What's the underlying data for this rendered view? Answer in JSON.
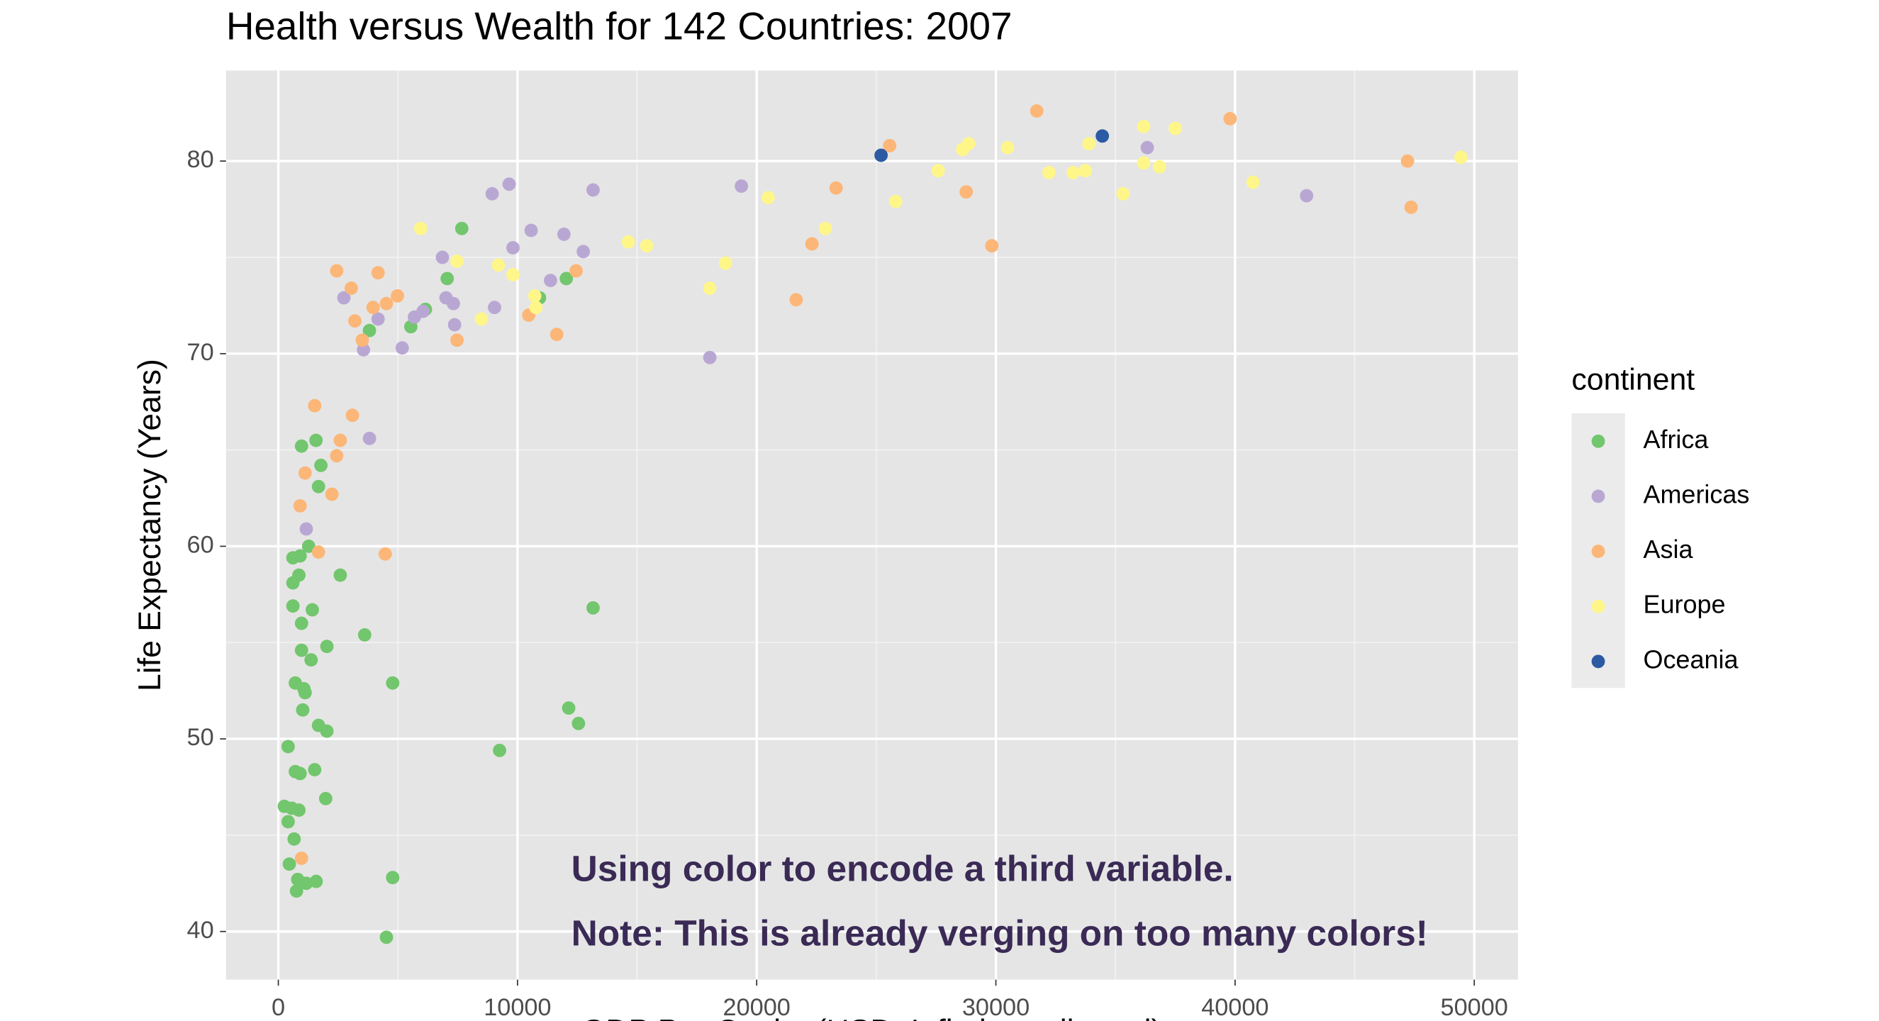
{
  "chart_data": {
    "type": "scatter",
    "title": "Health versus Wealth for 142 Countries: 2007",
    "x_label": "GDP Per Capita (USD, Inflation-adjusted)",
    "y_label": "Life Expectancy (Years)",
    "legend_title": "continent",
    "annotations": [
      "Using color to encode a third variable.",
      "Note: This is already verging on too many colors!"
    ],
    "xlim": [
      -2185,
      51830
    ],
    "ylim": [
      37.5,
      84.7
    ],
    "xticks": [
      0,
      10000,
      20000,
      30000,
      40000,
      50000
    ],
    "yticks": [
      40,
      50,
      60,
      70,
      80
    ],
    "grid": true,
    "series": [
      {
        "name": "Africa",
        "color": "#72c66d",
        "x": [
          970,
          1575,
          1780,
          1680,
          3810,
          5540,
          6150,
          7060,
          7670,
          10920,
          12040,
          13160,
          12140,
          12550,
          9250,
          4780,
          4780,
          4520,
          3610,
          2590,
          2030,
          1680,
          2030,
          1980,
          1520,
          1420,
          1370,
          970,
          1070,
          1270,
          860,
          610,
          910,
          610,
          610,
          970,
          710,
          1120,
          1020,
          410,
          710,
          910,
          250,
          560,
          860,
          410,
          660,
          460,
          810,
          760,
          1170,
          1580
        ],
        "values": [
          65.2,
          65.5,
          64.2,
          63.1,
          71.2,
          71.4,
          72.3,
          73.9,
          76.5,
          72.9,
          73.9,
          56.8,
          51.6,
          50.8,
          49.4,
          52.9,
          42.8,
          39.7,
          55.4,
          58.5,
          54.8,
          50.7,
          50.4,
          46.9,
          48.4,
          56.7,
          54.1,
          54.6,
          52.6,
          60.0,
          58.5,
          59.4,
          59.5,
          58.1,
          56.9,
          56.0,
          52.9,
          52.4,
          51.5,
          49.6,
          48.3,
          48.2,
          46.5,
          46.4,
          46.3,
          45.7,
          44.8,
          43.5,
          42.7,
          42.1,
          42.5,
          42.6
        ]
      },
      {
        "name": "Americas",
        "color": "#b9a7d3",
        "x": [
          2740,
          3560,
          3810,
          1170,
          4170,
          5180,
          5690,
          6050,
          6860,
          7010,
          7320,
          7370,
          8940,
          9650,
          9040,
          9810,
          10570,
          11380,
          11940,
          12750,
          13160,
          18040,
          19360,
          36330,
          42990
        ],
        "values": [
          72.9,
          70.2,
          65.6,
          60.9,
          71.8,
          70.3,
          71.9,
          72.2,
          75.0,
          72.9,
          72.6,
          71.5,
          78.3,
          78.8,
          72.4,
          75.5,
          76.4,
          73.8,
          76.2,
          75.3,
          78.5,
          69.8,
          78.7,
          80.7,
          78.2
        ]
      },
      {
        "name": "Asia",
        "color": "#fcb677",
        "x": [
          970,
          1680,
          4470,
          910,
          2240,
          1120,
          2440,
          2590,
          1520,
          3100,
          3510,
          3200,
          3050,
          2440,
          4170,
          3960,
          4520,
          4980,
          7470,
          10470,
          11640,
          12450,
          21650,
          22310,
          23320,
          25560,
          28760,
          29830,
          31710,
          39790,
          47210,
          47360
        ],
        "values": [
          43.8,
          59.7,
          59.6,
          62.1,
          62.7,
          63.8,
          64.7,
          65.5,
          67.3,
          66.8,
          70.7,
          71.7,
          73.4,
          74.3,
          74.2,
          72.4,
          72.6,
          73.0,
          70.7,
          72.0,
          71.0,
          74.3,
          72.8,
          75.7,
          78.6,
          80.8,
          78.4,
          75.6,
          82.6,
          82.2,
          80.0,
          77.6
        ]
      },
      {
        "name": "Europe",
        "color": "#fff68a",
        "x": [
          5950,
          7470,
          8490,
          9200,
          9810,
          10720,
          10770,
          14630,
          15400,
          18040,
          18700,
          20480,
          22870,
          25810,
          27590,
          28610,
          28860,
          30490,
          32220,
          33230,
          33740,
          33890,
          35320,
          36180,
          36180,
          36840,
          37500,
          40750,
          49440
        ],
        "values": [
          76.5,
          74.8,
          71.8,
          74.6,
          74.1,
          73.0,
          72.4,
          75.8,
          75.6,
          73.4,
          74.7,
          78.1,
          76.5,
          77.9,
          79.5,
          80.6,
          80.9,
          80.7,
          79.4,
          79.4,
          79.5,
          80.9,
          78.3,
          81.8,
          79.9,
          79.7,
          81.7,
          78.9,
          80.2
        ]
      },
      {
        "name": "Oceania",
        "color": "#2c5aa3",
        "x": [
          25200,
          34450
        ],
        "values": [
          80.3,
          81.3
        ]
      }
    ]
  }
}
